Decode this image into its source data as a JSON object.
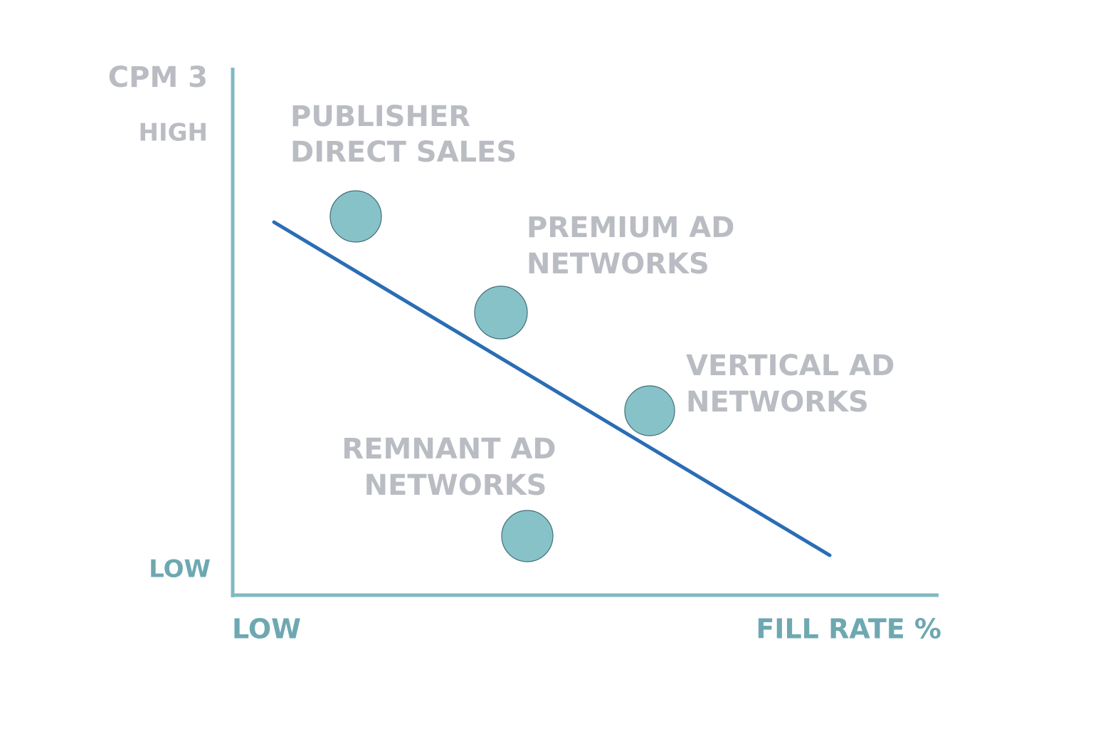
{
  "y_axis": {
    "title": "CPM 3",
    "high": "HIGH",
    "low": "LOW"
  },
  "x_axis": {
    "low": "LOW",
    "title": "FILL RATE %"
  },
  "nodes": [
    {
      "lines": [
        "PUBLISHER",
        "DIRECT SALES"
      ]
    },
    {
      "lines": [
        "PREMIUM AD",
        "NETWORKS"
      ]
    },
    {
      "lines": [
        "VERTICAL AD",
        "NETWORKS"
      ]
    },
    {
      "lines": [
        "REMNANT AD",
        "NETWORKS"
      ]
    }
  ]
}
